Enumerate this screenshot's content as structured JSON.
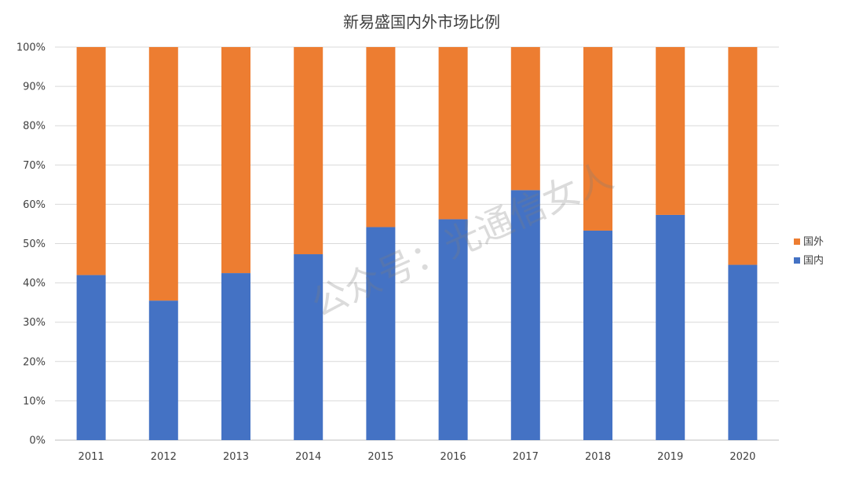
{
  "chart_data": {
    "type": "bar",
    "stacked": "percent",
    "title": "新易盛国内外市场比例",
    "categories": [
      "2011",
      "2012",
      "2013",
      "2014",
      "2015",
      "2016",
      "2017",
      "2018",
      "2019",
      "2020"
    ],
    "series": [
      {
        "name": "国内",
        "color": "#4472C4",
        "values": [
          42,
          35.5,
          42.5,
          47.3,
          54.2,
          56.2,
          63.6,
          53.3,
          57.3,
          44.6
        ]
      },
      {
        "name": "国外",
        "color": "#ED7D31",
        "values": [
          58,
          64.5,
          57.5,
          52.7,
          45.8,
          43.8,
          36.4,
          46.7,
          42.7,
          55.4
        ]
      }
    ],
    "yticks": [
      "0%",
      "10%",
      "20%",
      "30%",
      "40%",
      "50%",
      "60%",
      "70%",
      "80%",
      "90%",
      "100%"
    ],
    "ylim": [
      0,
      100
    ],
    "grid": true,
    "legend_position": "right",
    "watermark": "公众号：光通信女人"
  }
}
